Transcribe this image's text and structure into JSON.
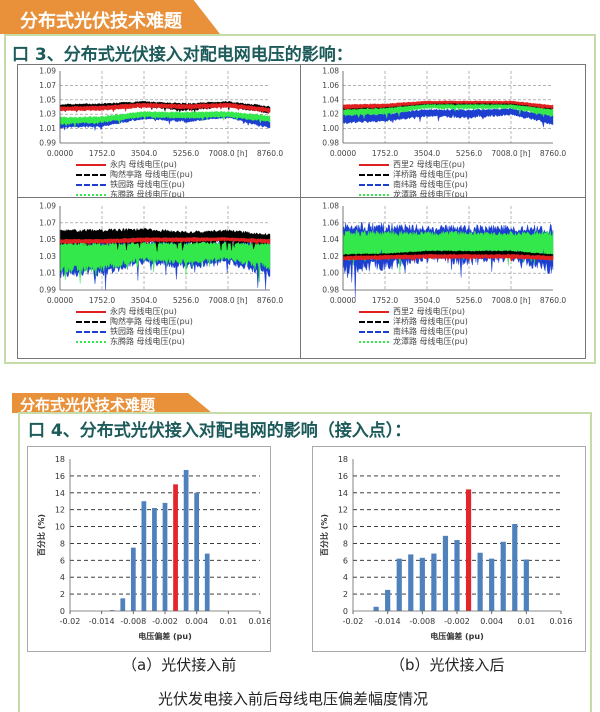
{
  "section1": {
    "banner": "分布式光伏技术难题",
    "title": "口 3、分布式光伏接入对配电网电压的影响："
  },
  "section2": {
    "banner": "分布式光伏技术难题",
    "title": "口 4、分布式光伏接入对配电网的影响（接入点）：",
    "caption_a": "（a）光伏接入前",
    "caption_b": "（b）光伏接入后",
    "caption": "光伏发电接入前后母线电压偏差幅度情况"
  },
  "chart_data": [
    {
      "type": "area",
      "x_ticks": [
        "0.0000",
        "1752.0",
        "3504.0",
        "5256.0",
        "7008.0 [h]",
        "8760.0"
      ],
      "xlim": [
        0,
        8760
      ],
      "ylim": [
        0.99,
        1.09
      ],
      "y_ticks": [
        "1.09",
        "1.07",
        "1.05",
        "1.03",
        "1.01",
        "0.99"
      ],
      "grid": true,
      "series": [
        {
          "name": "永内 母线电压(pu)",
          "color": "#e02020",
          "x": [
            0,
            1752,
            3504,
            5256,
            7008,
            8760
          ],
          "lower": [
            1.035,
            1.036,
            1.04,
            1.038,
            1.04,
            1.033
          ],
          "upper": [
            1.04,
            1.041,
            1.045,
            1.043,
            1.045,
            1.038
          ]
        },
        {
          "name": "陶然亭路 母线电压(pu)",
          "color": "#000000",
          "x": [
            0,
            1752,
            3504,
            5256,
            7008,
            8760
          ],
          "lower": [
            1.037,
            1.038,
            1.041,
            1.036,
            1.041,
            1.032
          ],
          "upper": [
            1.043,
            1.044,
            1.047,
            1.044,
            1.047,
            1.04
          ]
        },
        {
          "name": "铁园路 母线电压(pu)",
          "color": "#1c3fd0",
          "x": [
            0,
            1752,
            3504,
            5256,
            7008,
            8760
          ],
          "lower": [
            1.012,
            1.014,
            1.024,
            1.02,
            1.026,
            1.011
          ],
          "upper": [
            1.02,
            1.021,
            1.029,
            1.027,
            1.03,
            1.02
          ]
        },
        {
          "name": "东腾路 母线电压(pu)",
          "color": "#33e84a",
          "x": [
            0,
            1752,
            3504,
            5256,
            7008,
            8760
          ],
          "lower": [
            1.017,
            1.019,
            1.027,
            1.025,
            1.027,
            1.02
          ],
          "upper": [
            1.025,
            1.026,
            1.033,
            1.032,
            1.033,
            1.027
          ]
        }
      ]
    },
    {
      "type": "area",
      "x_ticks": [
        "0.0000",
        "1752.0",
        "3504.0",
        "5256.0",
        "7008.0 [h]",
        "8760.0"
      ],
      "xlim": [
        0,
        8760
      ],
      "ylim": [
        0.98,
        1.08
      ],
      "y_ticks": [
        "1.08",
        "1.06",
        "1.04",
        "1.02",
        "1.00",
        "0.98"
      ],
      "grid": true,
      "series": [
        {
          "name": "西里2 母线电压(pu)",
          "color": "#e02020",
          "x": [
            0,
            1752,
            3504,
            5256,
            7008,
            8760
          ],
          "lower": [
            1.028,
            1.03,
            1.035,
            1.035,
            1.035,
            1.028
          ],
          "upper": [
            1.033,
            1.034,
            1.038,
            1.038,
            1.038,
            1.032
          ]
        },
        {
          "name": "洋桥路 母线电压(pu)",
          "color": "#000000",
          "x": [
            0,
            1752,
            3504,
            5256,
            7008,
            8760
          ],
          "lower": [
            1.027,
            1.029,
            1.034,
            1.034,
            1.034,
            1.027
          ],
          "upper": [
            1.031,
            1.032,
            1.036,
            1.036,
            1.036,
            1.03
          ]
        },
        {
          "name": "南纬路 母线电压(pu)",
          "color": "#1c3fd0",
          "x": [
            0,
            1752,
            3504,
            5256,
            7008,
            8760
          ],
          "lower": [
            1.009,
            1.011,
            1.018,
            1.016,
            1.02,
            1.007
          ],
          "upper": [
            1.019,
            1.02,
            1.026,
            1.025,
            1.027,
            1.017
          ]
        },
        {
          "name": "龙潭路 母线电压(pu)",
          "color": "#33e84a",
          "x": [
            0,
            1752,
            3504,
            5256,
            7008,
            8760
          ],
          "lower": [
            1.019,
            1.021,
            1.029,
            1.028,
            1.029,
            1.018
          ],
          "upper": [
            1.028,
            1.029,
            1.036,
            1.036,
            1.036,
            1.027
          ]
        }
      ]
    },
    {
      "type": "area",
      "x_ticks": [
        "0.0000",
        "1752.0",
        "3504.0",
        "5256.0",
        "7008.0 [h]",
        "8760.0"
      ],
      "xlim": [
        0,
        8760
      ],
      "ylim": [
        0.99,
        1.09
      ],
      "y_ticks": [
        "1.09",
        "1.07",
        "1.05",
        "1.03",
        "1.01",
        "0.99"
      ],
      "grid": true,
      "series": [
        {
          "name": "永内 母线电压(pu)",
          "color": "#e02020",
          "x": [
            0,
            1752,
            3504,
            5256,
            7008,
            8760
          ],
          "lower": [
            1.046,
            1.046,
            1.048,
            1.048,
            1.049,
            1.046
          ],
          "upper": [
            1.05,
            1.05,
            1.052,
            1.052,
            1.052,
            1.05
          ]
        },
        {
          "name": "陶然亭路 母线电压(pu)",
          "color": "#000000",
          "x": [
            0,
            1752,
            3504,
            5256,
            7008,
            8760
          ],
          "lower": [
            1.047,
            1.047,
            1.048,
            1.047,
            1.048,
            1.046
          ],
          "upper": [
            1.06,
            1.06,
            1.061,
            1.058,
            1.06,
            1.055
          ]
        },
        {
          "name": "铁园路 母线电压(pu)",
          "color": "#1c3fd0",
          "x": [
            0,
            1752,
            3504,
            5256,
            7008,
            8760
          ],
          "lower": [
            1.012,
            1.014,
            1.025,
            1.02,
            1.025,
            1.012
          ],
          "upper": [
            1.047,
            1.047,
            1.046,
            1.046,
            1.046,
            1.045
          ]
        },
        {
          "name": "东腾路 母线电压(pu)",
          "color": "#33e84a",
          "x": [
            0,
            1752,
            3504,
            5256,
            7008,
            8760
          ],
          "lower": [
            1.016,
            1.018,
            1.028,
            1.025,
            1.028,
            1.019
          ],
          "upper": [
            1.044,
            1.044,
            1.045,
            1.045,
            1.045,
            1.044
          ]
        }
      ]
    },
    {
      "type": "area",
      "x_ticks": [
        "0.0000",
        "1752.0",
        "3504.0",
        "5256.0",
        "7008.0 [h]",
        "8760.0"
      ],
      "xlim": [
        0,
        8760
      ],
      "ylim": [
        0.98,
        1.08
      ],
      "y_ticks": [
        "1.08",
        "1.06",
        "1.04",
        "1.02",
        "1.00",
        "0.98"
      ],
      "grid": true,
      "series": [
        {
          "name": "西里2 母线电压(pu)",
          "color": "#e02020",
          "x": [
            0,
            1752,
            3504,
            5256,
            7008,
            8760
          ],
          "lower": [
            1.016,
            1.017,
            1.018,
            1.018,
            1.018,
            1.016
          ],
          "upper": [
            1.02,
            1.021,
            1.022,
            1.022,
            1.022,
            1.02
          ]
        },
        {
          "name": "洋桥路 母线电压(pu)",
          "color": "#000000",
          "x": [
            0,
            1752,
            3504,
            5256,
            7008,
            8760
          ],
          "lower": [
            1.018,
            1.019,
            1.022,
            1.022,
            1.022,
            1.018
          ],
          "upper": [
            1.022,
            1.023,
            1.026,
            1.026,
            1.026,
            1.022
          ]
        },
        {
          "name": "南纬路 母线电压(pu)",
          "color": "#1c3fd0",
          "x": [
            0,
            1752,
            3504,
            5256,
            7008,
            8760
          ],
          "lower": [
            1.009,
            1.012,
            1.02,
            1.017,
            1.021,
            1.007
          ],
          "upper": [
            1.052,
            1.052,
            1.051,
            1.051,
            1.051,
            1.05
          ]
        },
        {
          "name": "龙潭路 母线电压(pu)",
          "color": "#33e84a",
          "x": [
            0,
            1752,
            3504,
            5256,
            7008,
            8760
          ],
          "lower": [
            1.019,
            1.021,
            1.026,
            1.025,
            1.027,
            1.019
          ],
          "upper": [
            1.046,
            1.046,
            1.046,
            1.046,
            1.046,
            1.046
          ]
        }
      ]
    },
    {
      "type": "bar",
      "xlabel": "电压偏差 (pu)",
      "ylabel": "百分比 (%)",
      "ylim": [
        0,
        18
      ],
      "y_ticks": [
        0,
        2,
        4,
        6,
        8,
        10,
        12,
        14,
        16,
        18
      ],
      "grid": true,
      "x_tick_labels": [
        "-0.02",
        "-0.014",
        "-0.008",
        "-0.002",
        "0.004",
        "0.01",
        "0.016"
      ],
      "categories": [
        -0.02,
        -0.018,
        -0.016,
        -0.014,
        -0.012,
        -0.01,
        -0.008,
        -0.006,
        -0.004,
        -0.002,
        0,
        0.002,
        0.004,
        0.006,
        0.008,
        0.01,
        0.012,
        0.014,
        0.016
      ],
      "values": [
        0,
        0,
        0,
        0,
        0.1,
        1.5,
        7.5,
        13,
        12.2,
        12.8,
        15,
        16.7,
        14,
        6.8,
        0,
        0,
        0,
        0,
        0
      ],
      "highlight_category": 0,
      "bar_color": "#4f81bd",
      "highlight_color": "#e3262b"
    },
    {
      "type": "bar",
      "xlabel": "电压偏差 (pu)",
      "ylabel": "百分比 (%)",
      "ylim": [
        0,
        18
      ],
      "y_ticks": [
        0,
        2,
        4,
        6,
        8,
        10,
        12,
        14,
        16,
        18
      ],
      "grid": true,
      "x_tick_labels": [
        "-0.02",
        "-0.014",
        "-0.008",
        "-0.002",
        "0.004",
        "0.01",
        "0.016"
      ],
      "categories": [
        -0.02,
        -0.018,
        -0.016,
        -0.014,
        -0.012,
        -0.01,
        -0.008,
        -0.006,
        -0.004,
        -0.002,
        0,
        0.002,
        0.004,
        0.006,
        0.008,
        0.01,
        0.012,
        0.014,
        0.016
      ],
      "values": [
        0,
        0,
        0.5,
        2.5,
        6.2,
        6.7,
        6.3,
        6.8,
        8.9,
        8.4,
        14.4,
        6.9,
        6.2,
        8.2,
        10.3,
        6.1,
        0,
        0,
        0
      ],
      "highlight_category": 0,
      "bar_color": "#4f81bd",
      "highlight_color": "#e3262b"
    }
  ]
}
